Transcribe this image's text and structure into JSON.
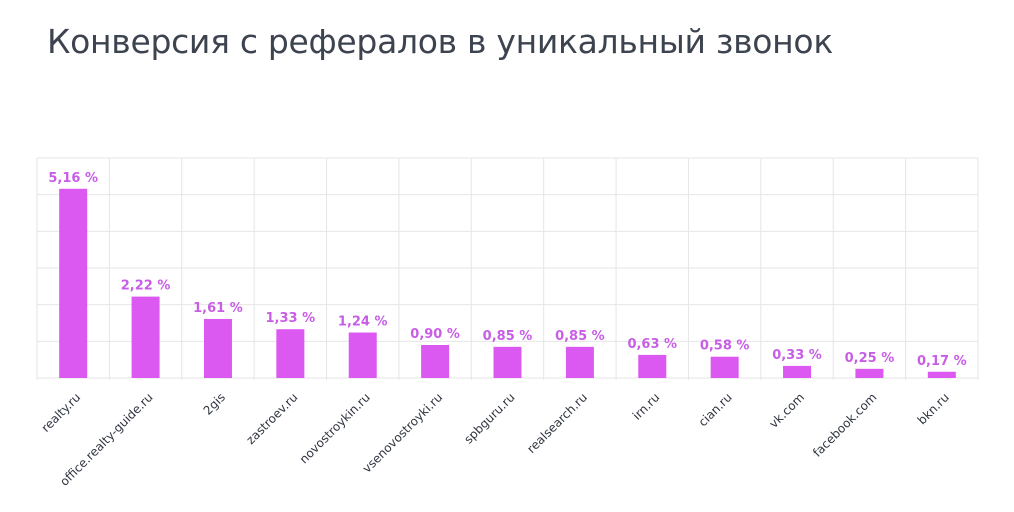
{
  "title": "Конверсия с рефералов в уникальный звонок",
  "colors": {
    "bar": "#db58f1",
    "label": "#c85ee6",
    "grid": "#e6e6e6",
    "text": "#3d4450"
  },
  "chart_data": {
    "type": "bar",
    "title": "Конверсия с рефералов в уникальный звонок",
    "xlabel": "",
    "ylabel": "",
    "ylim": [
      0,
      6
    ],
    "grid": true,
    "categories": [
      "realty.ru",
      "office.realty-guide.ru",
      "2gis",
      "zastroev.ru",
      "novostroykin.ru",
      "vsenovostroyki.ru",
      "spbguru.ru",
      "realsearch.ru",
      "irn.ru",
      "cian.ru",
      "vk.com",
      "facebook.com",
      "bkn.ru"
    ],
    "values": [
      5.16,
      2.22,
      1.61,
      1.33,
      1.24,
      0.9,
      0.85,
      0.85,
      0.63,
      0.58,
      0.33,
      0.25,
      0.17
    ],
    "data_labels": [
      "5,16 %",
      "2,22 %",
      "1,61 %",
      "1,33 %",
      "1,24 %",
      "0,90 %",
      "0,85 %",
      "0,85 %",
      "0,63 %",
      "0,58 %",
      "0,33 %",
      "0,25 %",
      "0,17 %"
    ]
  }
}
